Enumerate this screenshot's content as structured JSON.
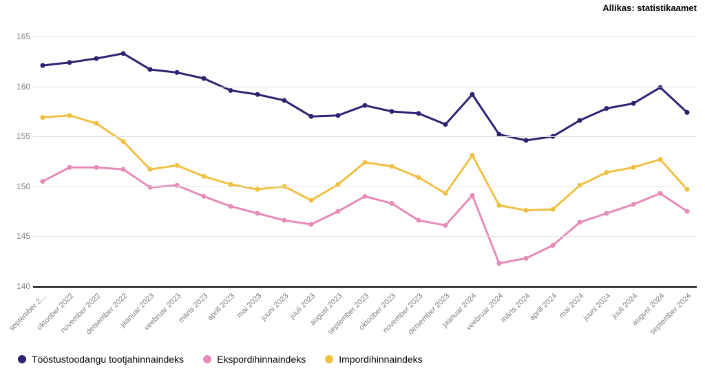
{
  "source_label": "Allikas: statistikaamet",
  "chart": {
    "type": "line",
    "background_color": "#ffffff",
    "grid_color": "#e0e0e0",
    "axis_color": "#000000",
    "tick_label_color": "#808080",
    "tick_fontsize": 12,
    "xlabel_fontsize": 11,
    "xlabel_rotation_deg": -45,
    "line_width": 3,
    "marker_radius": 3.5,
    "ylim": [
      140,
      167
    ],
    "yticks": [
      140,
      145,
      150,
      155,
      160,
      165
    ],
    "categories": [
      "september 2…",
      "oktoober 2022",
      "november 2022",
      "detsember 2022",
      "jaanuar 2023",
      "veebruar 2023",
      "märts 2023",
      "aprill 2023",
      "mai 2023",
      "juuni 2023",
      "juuli 2023",
      "august 2023",
      "september 2023",
      "oktoober 2023",
      "november 2023",
      "detsember 2023",
      "jaanuar 2024",
      "veebruar 2024",
      "märts 2024",
      "aprill 2024",
      "mai 2024",
      "juuni 2024",
      "juuli 2024",
      "august 2024",
      "september 2024"
    ],
    "series": [
      {
        "name": "Tööstustoodangu tootjahinnaindeks",
        "color": "#302070",
        "values": [
          162.1,
          162.4,
          162.8,
          163.3,
          161.7,
          161.4,
          160.8,
          159.6,
          159.2,
          158.6,
          157.0,
          157.1,
          158.1,
          157.5,
          157.3,
          156.2,
          159.2,
          155.2,
          154.6,
          155.0,
          156.6,
          157.8,
          158.3,
          159.9,
          157.4
        ]
      },
      {
        "name": "Ekspordihinnaindeks",
        "color": "#e68ab8",
        "values": [
          150.5,
          151.9,
          151.9,
          151.7,
          149.9,
          150.1,
          149.0,
          148.0,
          147.3,
          146.6,
          146.2,
          147.5,
          149.0,
          148.3,
          146.6,
          146.1,
          149.1,
          142.3,
          142.8,
          144.1,
          146.4,
          147.3,
          148.2,
          149.3,
          147.5
        ]
      },
      {
        "name": "Impordihinnaindeks",
        "color": "#f0c040",
        "values": [
          156.9,
          157.1,
          156.3,
          154.5,
          151.7,
          152.1,
          151.0,
          150.2,
          149.7,
          150.0,
          148.6,
          150.2,
          152.4,
          152.0,
          150.9,
          149.3,
          153.1,
          148.1,
          147.6,
          147.7,
          150.1,
          151.4,
          151.9,
          152.7,
          149.7
        ]
      }
    ]
  },
  "legend": {
    "position": "bottom-left",
    "fontsize": 14,
    "items": [
      {
        "label": "Tööstustoodangu tootjahinnaindeks",
        "color": "#302070"
      },
      {
        "label": "Ekspordihinnaindeks",
        "color": "#e68ab8"
      },
      {
        "label": "Impordihinnaindeks",
        "color": "#f0c040"
      }
    ]
  }
}
